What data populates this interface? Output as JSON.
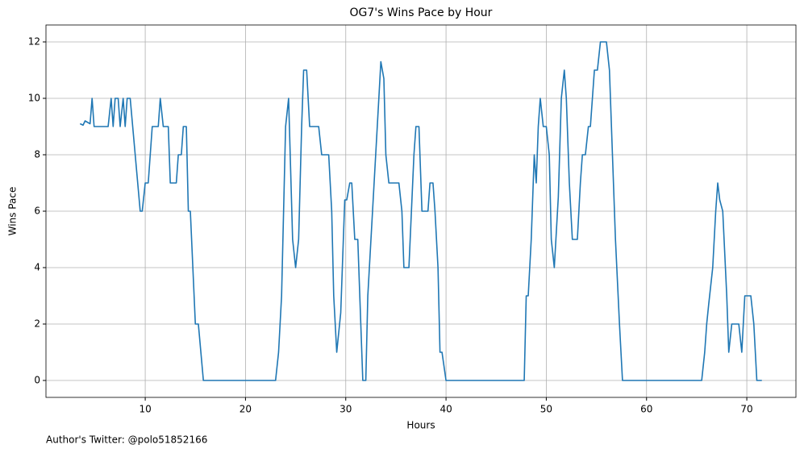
{
  "chart_data": {
    "type": "line",
    "title": "OG7's Wins Pace by Hour",
    "xlabel": "Hours",
    "ylabel": "Wins Pace",
    "footer": "Author's Twitter: @polo51852166",
    "color": "#1f77b4",
    "grid": true,
    "x": [
      3.5,
      3.8,
      4.0,
      4.5,
      4.7,
      4.9,
      5.5,
      6.3,
      6.6,
      6.8,
      7.0,
      7.3,
      7.5,
      7.8,
      8.0,
      8.2,
      8.5,
      9.5,
      9.7,
      10.0,
      10.3,
      10.7,
      11.3,
      11.5,
      11.8,
      12.3,
      12.5,
      13.1,
      13.3,
      13.6,
      13.8,
      14.1,
      14.3,
      14.5,
      15.0,
      15.3,
      15.8,
      23.0,
      23.3,
      23.6,
      24.0,
      24.3,
      24.7,
      25.0,
      25.3,
      25.6,
      25.8,
      26.1,
      26.4,
      27.3,
      27.6,
      28.3,
      28.6,
      28.8,
      29.1,
      29.5,
      29.9,
      30.1,
      30.4,
      30.6,
      30.9,
      31.2,
      31.5,
      31.7,
      32.0,
      32.2,
      33.3,
      33.5,
      33.8,
      34.0,
      34.3,
      35.3,
      35.6,
      35.8,
      36.3,
      36.8,
      37.0,
      37.3,
      37.6,
      38.2,
      38.4,
      38.7,
      38.9,
      39.2,
      39.4,
      39.6,
      40.0,
      47.8,
      48.0,
      48.2,
      48.5,
      48.8,
      49.0,
      49.2,
      49.4,
      49.7,
      50.0,
      50.3,
      50.5,
      50.8,
      51.2,
      51.5,
      51.8,
      52.0,
      52.3,
      52.6,
      53.1,
      53.4,
      53.6,
      53.9,
      54.2,
      54.4,
      54.8,
      55.1,
      55.4,
      56.0,
      56.3,
      56.6,
      56.9,
      57.3,
      57.6,
      65.5,
      65.8,
      66.0,
      66.2,
      66.6,
      66.9,
      67.1,
      67.3,
      67.6,
      68.0,
      68.2,
      68.5,
      69.2,
      69.5,
      69.8,
      70.4,
      70.7,
      71.0,
      71.5
    ],
    "values": [
      9.1,
      9.05,
      9.2,
      9.1,
      10,
      9,
      9,
      9,
      10,
      9,
      10,
      10,
      9,
      10,
      9,
      10,
      10,
      6,
      6,
      7,
      7,
      9,
      9,
      10,
      9,
      9,
      7,
      7,
      8,
      8,
      9,
      9,
      6,
      6,
      2,
      2,
      0,
      0,
      1,
      3,
      9,
      10,
      5,
      4,
      5,
      9,
      11,
      11,
      9,
      9,
      8,
      8,
      6,
      3,
      1,
      2.4,
      6.4,
      6.4,
      7,
      7,
      5,
      5,
      2,
      0,
      0,
      3,
      10,
      11.3,
      10.7,
      8,
      7,
      7,
      6,
      4,
      4,
      8,
      9,
      9,
      6,
      6,
      7,
      7,
      6,
      4,
      1,
      1,
      0,
      0,
      3,
      3,
      5,
      8,
      7,
      9,
      10,
      9,
      9,
      8,
      5,
      4,
      6.5,
      10,
      11,
      10,
      7,
      5,
      5,
      7,
      8,
      8,
      9,
      9,
      11,
      11,
      12,
      12,
      11,
      8,
      5,
      2,
      0,
      0,
      1,
      2,
      2.7,
      4,
      6,
      7,
      6.4,
      6,
      3,
      1,
      2,
      2,
      1,
      3,
      3,
      2,
      0,
      0
    ],
    "xlim": [
      0.1,
      74.9
    ],
    "ylim": [
      -0.6,
      12.6
    ],
    "xticks": [
      10,
      20,
      30,
      40,
      50,
      60,
      70
    ],
    "yticks": [
      0,
      2,
      4,
      6,
      8,
      10,
      12
    ]
  }
}
